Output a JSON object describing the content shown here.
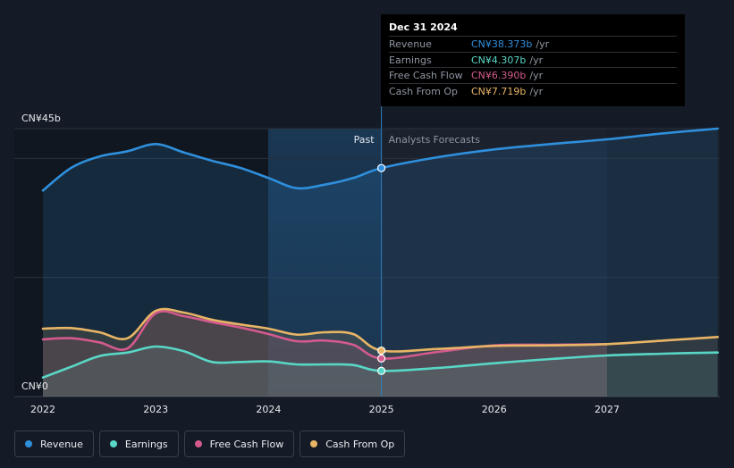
{
  "chart_data": {
    "type": "area",
    "title": "",
    "y_axis": {
      "max_label": "CN¥45b",
      "min_label": "CN¥0",
      "ylim": [
        0,
        45
      ]
    },
    "x_axis": {
      "tick_labels": [
        "2022",
        "2023",
        "2024",
        "2025",
        "2026",
        "2027"
      ],
      "xlim": [
        2021.75,
        2027.98
      ]
    },
    "divider": {
      "x": 2025.0,
      "past_label": "Past",
      "forecast_label": "Analysts Forecasts"
    },
    "forecast_band_end": 2027.0,
    "series": [
      {
        "name": "Revenue",
        "color": "#2f8fdc",
        "points": [
          [
            2022.0,
            34.6
          ],
          [
            2022.25,
            38.4
          ],
          [
            2022.5,
            40.3
          ],
          [
            2022.75,
            41.2
          ],
          [
            2023.0,
            42.4
          ],
          [
            2023.25,
            41.0
          ],
          [
            2023.5,
            39.6
          ],
          [
            2023.75,
            38.4
          ],
          [
            2024.0,
            36.7
          ],
          [
            2024.25,
            35.0
          ],
          [
            2024.5,
            35.6
          ],
          [
            2024.75,
            36.7
          ],
          [
            2025.0,
            38.373
          ],
          [
            2025.5,
            40.2
          ],
          [
            2026.0,
            41.5
          ],
          [
            2026.5,
            42.4
          ],
          [
            2027.0,
            43.2
          ],
          [
            2027.5,
            44.2
          ],
          [
            2027.98,
            45.0
          ]
        ]
      },
      {
        "name": "Earnings",
        "color": "#59d7c6",
        "points": [
          [
            2022.0,
            3.2
          ],
          [
            2022.25,
            5.0
          ],
          [
            2022.5,
            6.8
          ],
          [
            2022.75,
            7.4
          ],
          [
            2023.0,
            8.4
          ],
          [
            2023.25,
            7.6
          ],
          [
            2023.5,
            5.8
          ],
          [
            2023.75,
            5.8
          ],
          [
            2024.0,
            5.9
          ],
          [
            2024.25,
            5.4
          ],
          [
            2024.5,
            5.4
          ],
          [
            2024.75,
            5.3
          ],
          [
            2025.0,
            4.307
          ],
          [
            2025.5,
            4.8
          ],
          [
            2026.0,
            5.6
          ],
          [
            2026.5,
            6.3
          ],
          [
            2027.0,
            6.9
          ],
          [
            2027.5,
            7.2
          ],
          [
            2027.98,
            7.4
          ]
        ]
      },
      {
        "name": "Free Cash Flow",
        "color": "#d45a8e",
        "points": [
          [
            2022.0,
            9.6
          ],
          [
            2022.25,
            9.8
          ],
          [
            2022.5,
            9.1
          ],
          [
            2022.75,
            8.1
          ],
          [
            2023.0,
            14.0
          ],
          [
            2023.25,
            13.5
          ],
          [
            2023.5,
            12.5
          ],
          [
            2023.75,
            11.6
          ],
          [
            2024.0,
            10.5
          ],
          [
            2024.25,
            9.3
          ],
          [
            2024.5,
            9.4
          ],
          [
            2024.75,
            8.7
          ],
          [
            2025.0,
            6.39
          ],
          [
            2025.5,
            7.5
          ],
          [
            2026.0,
            8.6
          ],
          [
            2026.5,
            8.7
          ],
          [
            2027.0,
            8.8
          ]
        ]
      },
      {
        "name": "Cash From Op",
        "color": "#e8b566",
        "points": [
          [
            2022.0,
            11.4
          ],
          [
            2022.25,
            11.5
          ],
          [
            2022.5,
            10.8
          ],
          [
            2022.75,
            9.8
          ],
          [
            2023.0,
            14.4
          ],
          [
            2023.25,
            14.1
          ],
          [
            2023.5,
            12.9
          ],
          [
            2023.75,
            12.1
          ],
          [
            2024.0,
            11.4
          ],
          [
            2024.25,
            10.4
          ],
          [
            2024.5,
            10.8
          ],
          [
            2024.75,
            10.5
          ],
          [
            2025.0,
            7.719
          ],
          [
            2025.5,
            8.0
          ],
          [
            2026.0,
            8.5
          ],
          [
            2026.5,
            8.6
          ],
          [
            2027.0,
            8.8
          ],
          [
            2027.5,
            9.4
          ],
          [
            2027.98,
            10.0
          ]
        ]
      }
    ]
  },
  "tooltip": {
    "date": "Dec 31 2024",
    "rows": [
      {
        "name": "Revenue",
        "value": "CN¥38.373b",
        "unit": "/yr",
        "color": "#2f8fdc"
      },
      {
        "name": "Earnings",
        "value": "CN¥4.307b",
        "unit": "/yr",
        "color": "#59d7c6"
      },
      {
        "name": "Free Cash Flow",
        "value": "CN¥6.390b",
        "unit": "/yr",
        "color": "#d45a8e"
      },
      {
        "name": "Cash From Op",
        "value": "CN¥7.719b",
        "unit": "/yr",
        "color": "#e8b566"
      }
    ]
  },
  "legend": [
    {
      "label": "Revenue",
      "color": "#2f8fdc"
    },
    {
      "label": "Earnings",
      "color": "#59d7c6"
    },
    {
      "label": "Free Cash Flow",
      "color": "#d45a8e"
    },
    {
      "label": "Cash From Op",
      "color": "#e8b566"
    }
  ]
}
